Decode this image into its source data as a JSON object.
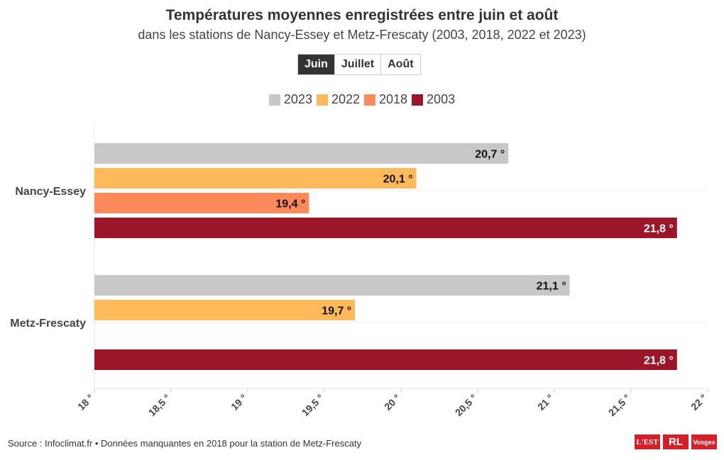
{
  "chart_data": {
    "type": "bar",
    "orientation": "horizontal",
    "title": "Températures moyennes enregistrées entre juin et août",
    "subtitle": "dans les stations de Nancy-Essey et Metz-Frescaty (2003, 2018, 2022 et 2023)",
    "categories": [
      "Nancy-Essey",
      "Metz-Frescaty"
    ],
    "series": [
      {
        "name": "2023",
        "color": "#c8c8c8",
        "values": [
          20.7,
          21.1
        ],
        "labels": [
          "20,7 °",
          "21,1 °"
        ],
        "label_color": "#111111"
      },
      {
        "name": "2022",
        "color": "#feb95a",
        "values": [
          20.1,
          19.7
        ],
        "labels": [
          "20,1 °",
          "19,7 °"
        ],
        "label_color": "#111111"
      },
      {
        "name": "2018",
        "color": "#fe8a5c",
        "values": [
          19.4,
          null
        ],
        "labels": [
          "19,4 °",
          ""
        ],
        "label_color": "#111111"
      },
      {
        "name": "2003",
        "color": "#9b1628",
        "values": [
          21.8,
          21.8
        ],
        "labels": [
          "21,8 °",
          "21,8 °"
        ],
        "label_color": "#ffffff"
      }
    ],
    "xlim": [
      18,
      22
    ],
    "x_ticks": [
      18,
      18.5,
      19,
      19.5,
      20,
      20.5,
      21,
      21.5,
      22
    ],
    "x_tick_labels": [
      "18 °",
      "18,5 °",
      "19 °",
      "19,5 °",
      "20 °",
      "20,5 °",
      "21 °",
      "21,5 °",
      "22 °"
    ],
    "legend_position": "top-center",
    "grid": true
  },
  "tabs": {
    "items": [
      "Juin",
      "Juillet",
      "Août"
    ],
    "active": "Juin"
  },
  "footer": {
    "source": "Source : Infoclimat.fr • Données manquantes en 2018 pour la station de Metz-Frescaty"
  },
  "logos": {
    "est": "L'EST",
    "rl": "RL",
    "vosges": "Vosges"
  }
}
